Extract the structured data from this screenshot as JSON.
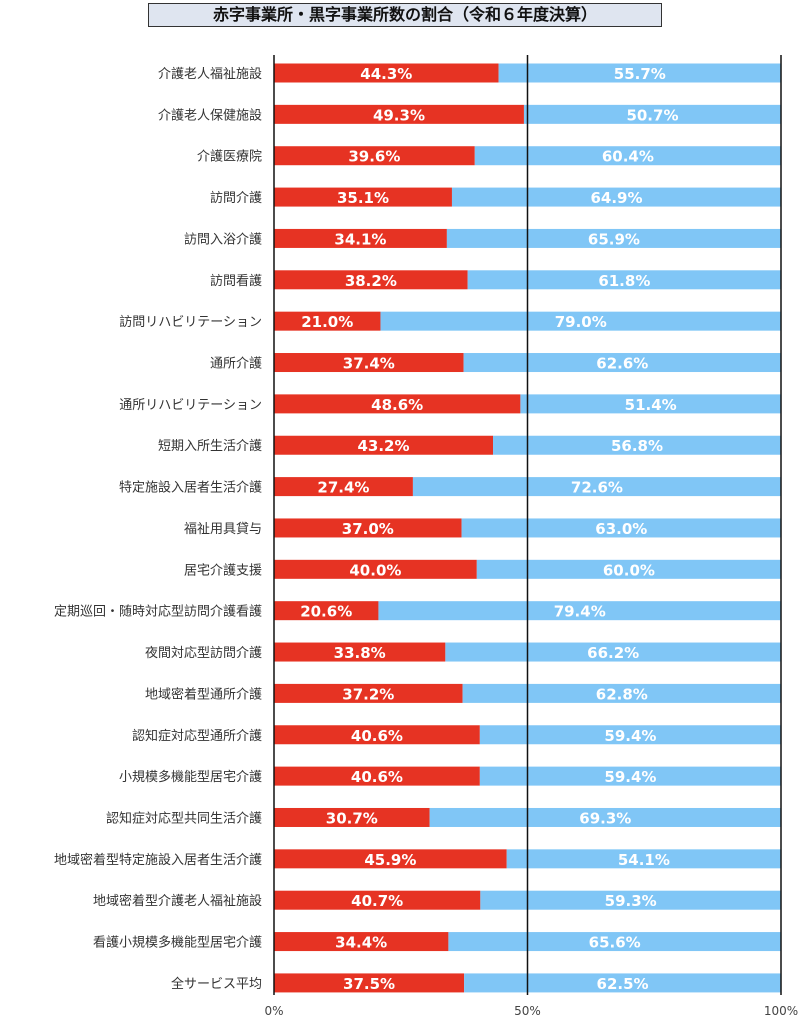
{
  "chart_data": {
    "type": "bar",
    "orientation": "horizontal",
    "stacked": "percent",
    "title": "赤字事業所・黒字事業所数の割合（令和６年度決算）",
    "categories": [
      "介護老人福祉施設",
      "介護老人保健施設",
      "介護医療院",
      "訪問介護",
      "訪問入浴介護",
      "訪問看護",
      "訪問リハビリテーション",
      "通所介護",
      "通所リハビリテーション",
      "短期入所生活介護",
      "特定施設入居者生活介護",
      "福祉用具貸与",
      "居宅介護支援",
      "定期巡回・随時対応型訪問介護看護",
      "夜間対応型訪問介護",
      "地域密着型通所介護",
      "認知症対応型通所介護",
      "小規模多機能型居宅介護",
      "認知症対応型共同生活介護",
      "地域密着型特定施設入居者生活介護",
      "地域密着型介護老人福祉施設",
      "看護小規模多機能型居宅介護",
      "全サービス平均"
    ],
    "series": [
      {
        "color": "#e63323",
        "values": [
          44.3,
          49.3,
          39.6,
          35.1,
          34.1,
          38.2,
          21.0,
          37.4,
          48.6,
          43.2,
          27.4,
          37.0,
          40.0,
          20.6,
          33.8,
          37.2,
          40.6,
          40.6,
          30.7,
          45.9,
          40.7,
          34.4,
          37.5
        ]
      },
      {
        "color": "#80c6f6",
        "values": [
          55.7,
          50.7,
          60.4,
          64.9,
          65.9,
          61.8,
          79.0,
          62.6,
          51.4,
          56.8,
          72.6,
          63.0,
          60.0,
          79.4,
          66.2,
          62.8,
          59.4,
          59.4,
          69.3,
          54.1,
          59.3,
          65.6,
          62.5
        ]
      }
    ],
    "xlim": [
      0,
      100
    ],
    "xticks": [
      "0%",
      "50%",
      "100%"
    ],
    "grid": false,
    "legend": "none"
  }
}
